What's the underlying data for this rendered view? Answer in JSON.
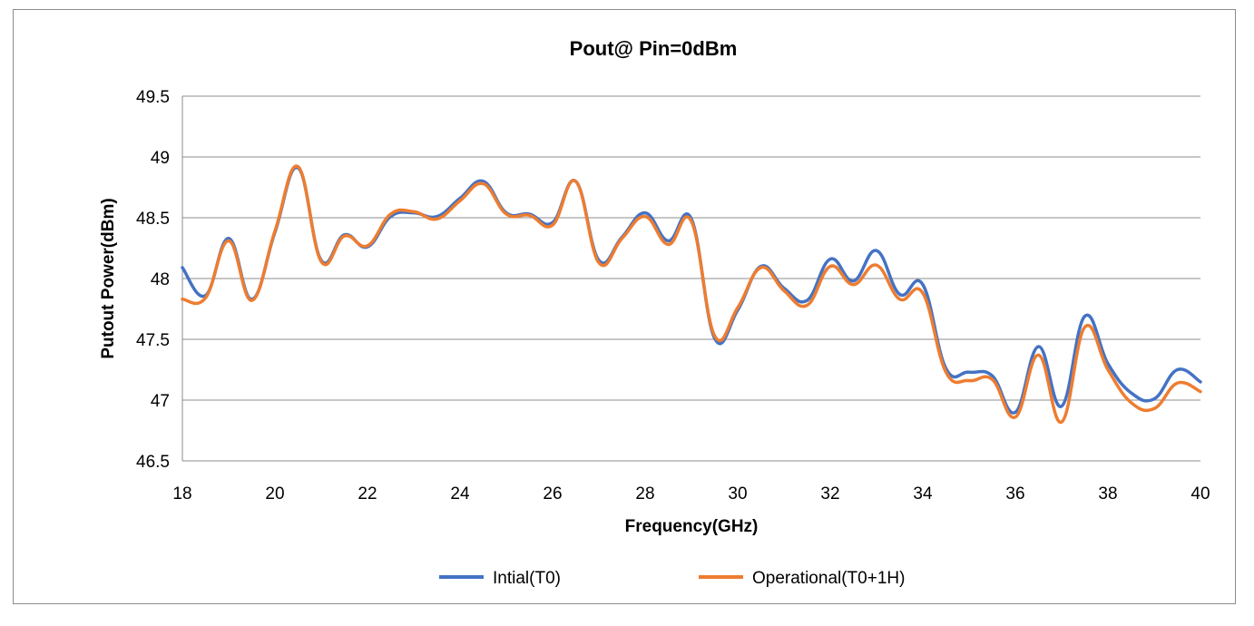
{
  "chart_data": {
    "type": "line",
    "title": "Pout@ Pin=0dBm",
    "xlabel": "Frequency(GHz)",
    "ylabel": "Putout Power(dBm)",
    "xlim": [
      18,
      40
    ],
    "ylim": [
      46.5,
      49.5
    ],
    "x_ticks": [
      "18",
      "20",
      "22",
      "24",
      "26",
      "28",
      "30",
      "32",
      "34",
      "36",
      "38",
      "40"
    ],
    "y_ticks": [
      "46.5",
      "47",
      "47.5",
      "48",
      "48.5",
      "49",
      "49.5"
    ],
    "grid": "horizontal",
    "legend_position": "bottom",
    "x": [
      18,
      18.5,
      19,
      19.5,
      20,
      20.5,
      21,
      21.5,
      22,
      22.5,
      23,
      23.5,
      24,
      24.5,
      25,
      25.5,
      26,
      26.5,
      27,
      27.5,
      28,
      28.5,
      29,
      29.5,
      30,
      30.5,
      31,
      31.5,
      32,
      32.5,
      33,
      33.5,
      34,
      34.5,
      35,
      35.5,
      36,
      36.5,
      37,
      37.5,
      38,
      38.5,
      39,
      39.5,
      40
    ],
    "series": [
      {
        "name": "Intial(T0)",
        "color": "#4472c4",
        "values": [
          48.09,
          47.86,
          48.33,
          47.83,
          48.38,
          48.91,
          48.15,
          48.36,
          48.26,
          48.51,
          48.54,
          48.51,
          48.66,
          48.8,
          48.54,
          48.53,
          48.46,
          48.8,
          48.15,
          48.34,
          48.54,
          48.31,
          48.49,
          47.51,
          47.74,
          48.1,
          47.92,
          47.82,
          48.16,
          47.98,
          48.23,
          47.87,
          47.95,
          47.26,
          47.23,
          47.2,
          46.9,
          47.44,
          46.95,
          47.69,
          47.3,
          47.06,
          47.01,
          47.25,
          47.15
        ]
      },
      {
        "name": "Operational(T0+1H)",
        "color": "#ed7d31",
        "values": [
          47.83,
          47.84,
          48.31,
          47.82,
          48.39,
          48.92,
          48.14,
          48.35,
          48.27,
          48.53,
          48.55,
          48.49,
          48.64,
          48.78,
          48.53,
          48.52,
          48.44,
          48.8,
          48.13,
          48.33,
          48.51,
          48.28,
          48.47,
          47.53,
          47.76,
          48.09,
          47.9,
          47.78,
          48.1,
          47.95,
          48.11,
          47.83,
          47.88,
          47.23,
          47.16,
          47.17,
          46.86,
          47.37,
          46.82,
          47.6,
          47.25,
          46.98,
          46.93,
          47.14,
          47.07
        ]
      }
    ]
  }
}
